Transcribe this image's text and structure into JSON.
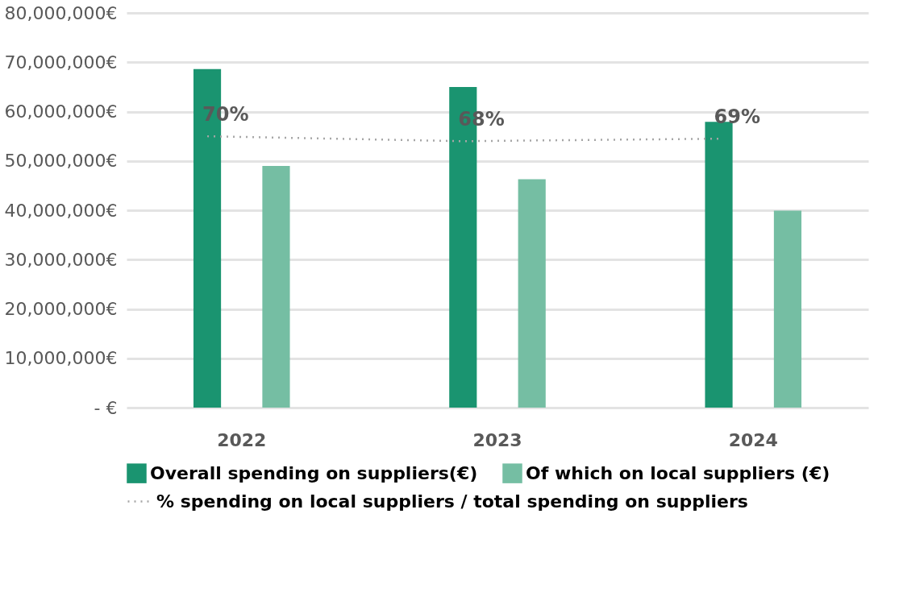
{
  "chart_data": {
    "type": "bar",
    "categories": [
      "2022",
      "2023",
      "2024"
    ],
    "series": [
      {
        "name": "Overall spending on suppliers(€)",
        "color": "#1a9470",
        "values": [
          68600000,
          65000000,
          57900000
        ]
      },
      {
        "name": "Of which on local suppliers (€)",
        "color": "#75bea3",
        "values": [
          49000000,
          46300000,
          39900000
        ]
      },
      {
        "name": "% spending on local suppliers / total spending on suppliers",
        "type": "line",
        "axis": "y2",
        "color": "#a6a6a6",
        "line_style": "dotted",
        "marker": "none",
        "values": [
          70,
          68,
          69
        ],
        "value_labels": [
          "70%",
          "68%",
          "69%"
        ]
      }
    ],
    "ylim": [
      0,
      80000000
    ],
    "yticks": [
      {
        "value": 0,
        "label": "- €"
      },
      {
        "value": 10000000,
        "label": "10,000,000€"
      },
      {
        "value": 20000000,
        "label": "20,000,000€"
      },
      {
        "value": 30000000,
        "label": "30,000,000€"
      },
      {
        "value": 40000000,
        "label": "40,000,000€"
      },
      {
        "value": 50000000,
        "label": "50,000,000€"
      },
      {
        "value": 60000000,
        "label": "60,000,000€"
      },
      {
        "value": 70000000,
        "label": "70,000,000€"
      },
      {
        "value": 80000000,
        "label": "80,000,000€"
      }
    ],
    "grid": "y",
    "legend": "bottom"
  }
}
